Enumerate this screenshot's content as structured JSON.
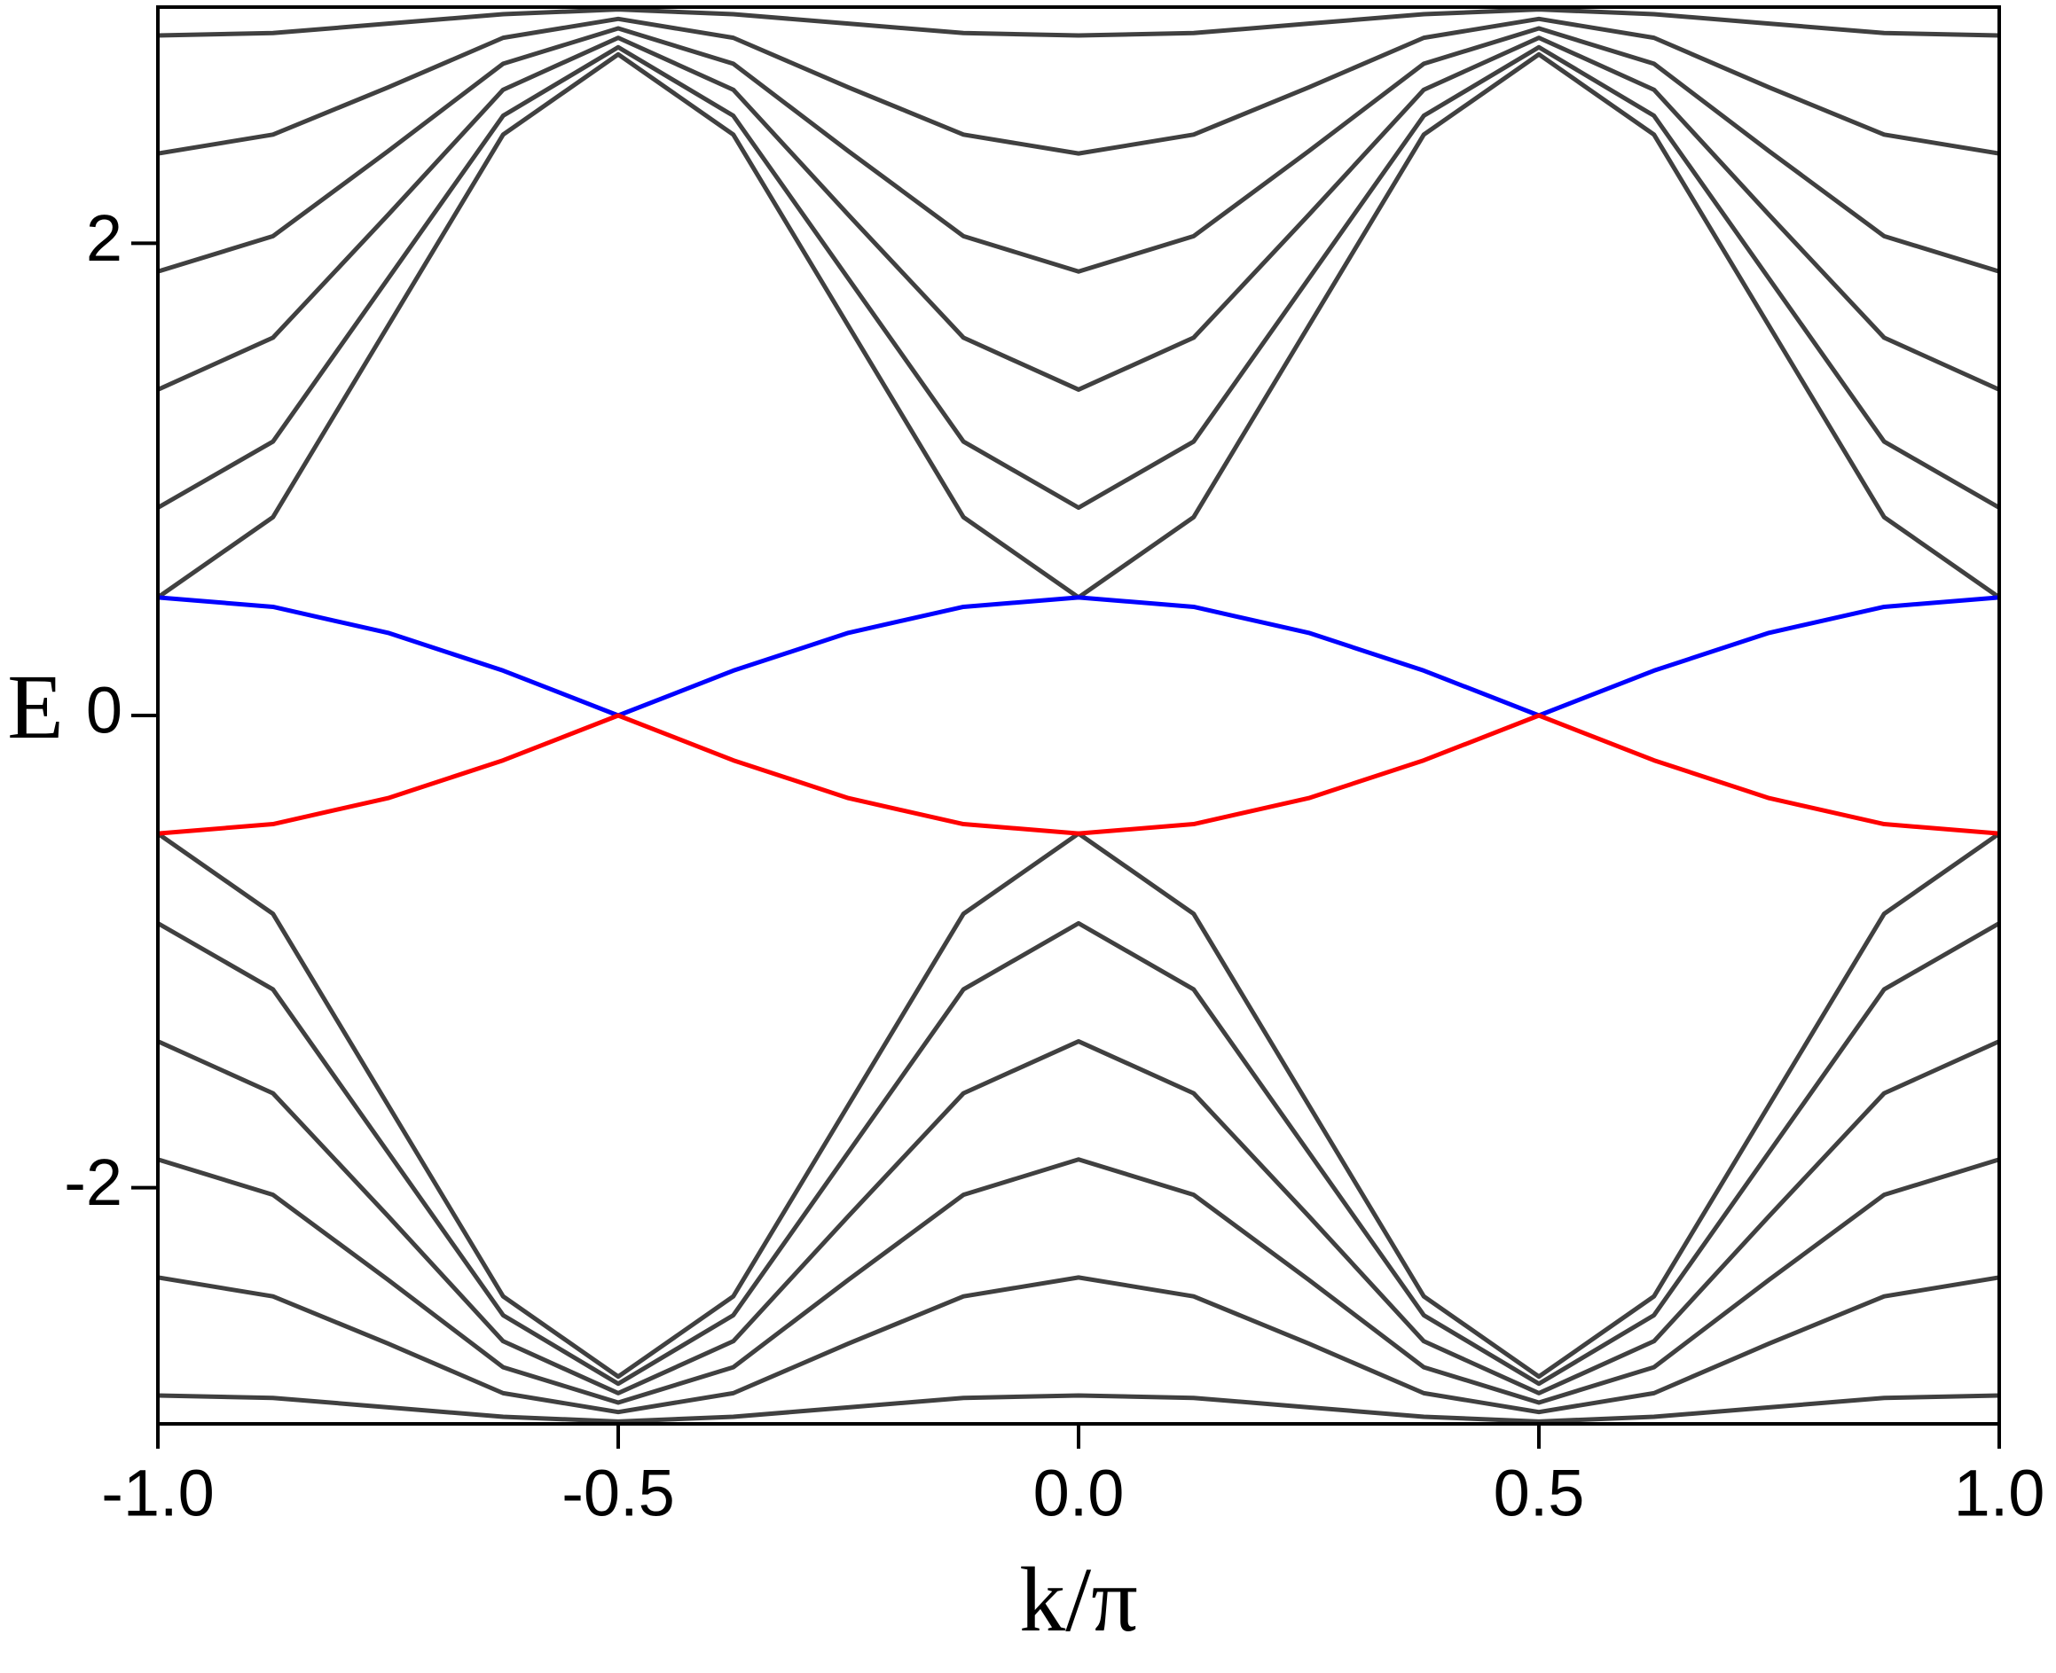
{
  "chart_data": {
    "type": "line",
    "x_label": "k/π",
    "y_label": "E",
    "xlim": [
      -1,
      1
    ],
    "ylim": [
      -3,
      3
    ],
    "xticks": [
      {
        "value": -1,
        "label": "-1.0"
      },
      {
        "value": -0.5,
        "label": "-0.5"
      },
      {
        "value": 0,
        "label": "0.0"
      },
      {
        "value": 0.5,
        "label": "0.5"
      },
      {
        "value": 1,
        "label": "1.0"
      }
    ],
    "yticks": [
      -2,
      0,
      2
    ],
    "x": [
      -1,
      -0.875,
      -0.75,
      -0.625,
      -0.5,
      -0.375,
      -0.25,
      -0.125,
      0,
      0.125,
      0.25,
      0.375,
      0.5,
      0.625,
      0.75,
      0.875,
      1
    ],
    "series": [
      {
        "color": "#404040",
        "values": [
          0.5,
          0.84,
          1.65,
          2.46,
          2.8,
          2.46,
          1.65,
          0.84,
          0.5,
          0.84,
          1.65,
          2.46,
          2.8,
          2.46,
          1.65,
          0.84,
          0.5
        ]
      },
      {
        "color": "#404040",
        "values": [
          0.88,
          1.16,
          1.85,
          2.54,
          2.83,
          2.54,
          1.85,
          1.16,
          0.88,
          1.16,
          1.85,
          2.54,
          2.83,
          2.54,
          1.85,
          1.16,
          0.88
        ]
      },
      {
        "color": "#404040",
        "values": [
          1.38,
          1.6,
          2.12,
          2.65,
          2.87,
          2.65,
          2.12,
          1.6,
          1.38,
          1.6,
          2.12,
          2.65,
          2.87,
          2.65,
          2.12,
          1.6,
          1.38
        ]
      },
      {
        "color": "#404040",
        "values": [
          1.88,
          2.03,
          2.39,
          2.76,
          2.91,
          2.76,
          2.39,
          2.03,
          1.88,
          2.03,
          2.39,
          2.76,
          2.91,
          2.76,
          2.39,
          2.03,
          1.88
        ]
      },
      {
        "color": "#404040",
        "values": [
          2.38,
          2.46,
          2.66,
          2.87,
          2.95,
          2.87,
          2.66,
          2.46,
          2.38,
          2.46,
          2.66,
          2.87,
          2.95,
          2.87,
          2.66,
          2.46,
          2.38
        ]
      },
      {
        "color": "#404040",
        "values": [
          2.88,
          2.89,
          2.93,
          2.97,
          2.99,
          2.97,
          2.93,
          2.89,
          2.88,
          2.89,
          2.93,
          2.97,
          2.99,
          2.97,
          2.93,
          2.89,
          2.88
        ]
      },
      {
        "color": "#404040",
        "values": [
          -0.5,
          -0.84,
          -1.65,
          -2.46,
          -2.8,
          -2.46,
          -1.65,
          -0.84,
          -0.5,
          -0.84,
          -1.65,
          -2.46,
          -2.8,
          -2.46,
          -1.65,
          -0.84,
          -0.5
        ]
      },
      {
        "color": "#404040",
        "values": [
          -0.88,
          -1.16,
          -1.85,
          -2.54,
          -2.83,
          -2.54,
          -1.85,
          -1.16,
          -0.88,
          -1.16,
          -1.85,
          -2.54,
          -2.83,
          -2.54,
          -1.85,
          -1.16,
          -0.88
        ]
      },
      {
        "color": "#404040",
        "values": [
          -1.38,
          -1.6,
          -2.12,
          -2.65,
          -2.87,
          -2.65,
          -2.12,
          -1.6,
          -1.38,
          -1.6,
          -2.12,
          -2.65,
          -2.87,
          -2.65,
          -2.12,
          -1.6,
          -1.38
        ]
      },
      {
        "color": "#404040",
        "values": [
          -1.88,
          -2.03,
          -2.39,
          -2.76,
          -2.91,
          -2.76,
          -2.39,
          -2.03,
          -1.88,
          -2.03,
          -2.39,
          -2.76,
          -2.91,
          -2.76,
          -2.39,
          -2.03,
          -1.88
        ]
      },
      {
        "color": "#404040",
        "values": [
          -2.38,
          -2.46,
          -2.66,
          -2.87,
          -2.95,
          -2.87,
          -2.66,
          -2.46,
          -2.38,
          -2.46,
          -2.66,
          -2.87,
          -2.95,
          -2.87,
          -2.66,
          -2.46,
          -2.38
        ]
      },
      {
        "color": "#404040",
        "values": [
          -2.88,
          -2.89,
          -2.93,
          -2.97,
          -2.99,
          -2.97,
          -2.93,
          -2.89,
          -2.88,
          -2.89,
          -2.93,
          -2.97,
          -2.99,
          -2.97,
          -2.93,
          -2.89,
          -2.88
        ]
      },
      {
        "color": "#0000ff",
        "values": [
          0.5,
          0.46,
          0.35,
          0.19,
          0,
          0.19,
          0.35,
          0.46,
          0.5,
          0.46,
          0.35,
          0.19,
          0,
          0.19,
          0.35,
          0.46,
          0.5
        ]
      },
      {
        "color": "#ff0000",
        "values": [
          -0.5,
          -0.46,
          -0.35,
          -0.19,
          0,
          -0.19,
          -0.35,
          -0.46,
          -0.5,
          -0.46,
          -0.35,
          -0.19,
          0,
          -0.19,
          -0.35,
          -0.46,
          -0.5
        ]
      }
    ]
  }
}
